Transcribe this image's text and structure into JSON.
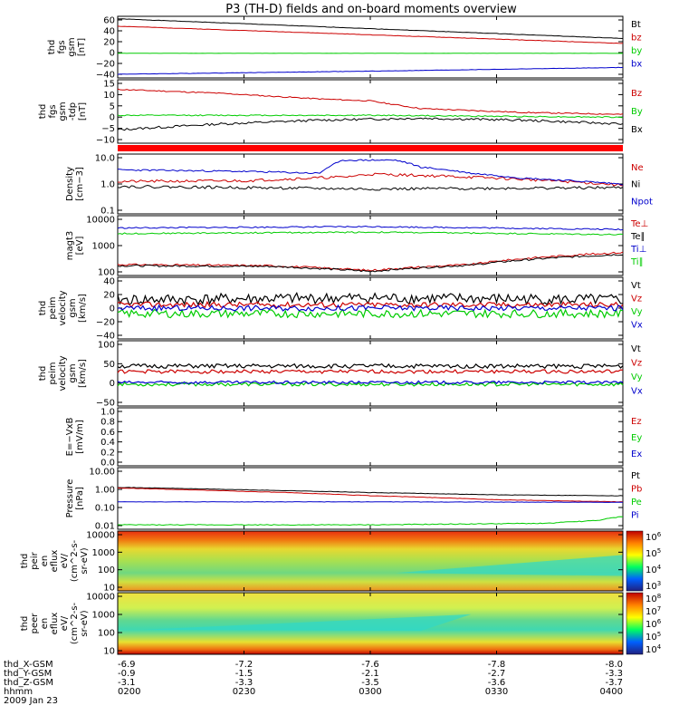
{
  "title": "P3 (TH-D) fields and on-board moments overview",
  "colors": {
    "black": "#000000",
    "red": "#cc0000",
    "green": "#00cc00",
    "blue": "#0000cc"
  },
  "chart_data": [
    {
      "type": "line",
      "ylabel": [
        "thd",
        "fgs",
        "gsm",
        "[nT]"
      ],
      "yticks": [
        "60",
        "40",
        "20",
        "0",
        "−20",
        "−40"
      ],
      "ylim": [
        -40,
        60
      ],
      "x_range": [
        "0200",
        "0400"
      ],
      "series": [
        {
          "name": "Bt",
          "color": "black",
          "x": [
            0,
            0.25,
            0.5,
            0.75,
            1
          ],
          "y": [
            56,
            48,
            40,
            32,
            24
          ],
          "noise": 0.3
        },
        {
          "name": "bz",
          "color": "red",
          "x": [
            0,
            0.25,
            0.5,
            0.75,
            1
          ],
          "y": [
            44,
            37,
            30,
            23,
            16
          ],
          "noise": 0.3
        },
        {
          "name": "by",
          "color": "green",
          "x": [
            0,
            0.5,
            1
          ],
          "y": [
            0,
            0,
            0
          ],
          "noise": 0.2
        },
        {
          "name": "bx",
          "color": "blue",
          "x": [
            0,
            0.5,
            1
          ],
          "y": [
            -34,
            -29,
            -23
          ],
          "noise": 0.3
        }
      ]
    },
    {
      "type": "line",
      "ylabel": [
        "thd",
        "fgs",
        "gsm",
        "-tdp",
        "[nT]"
      ],
      "yticks": [
        "15",
        "10",
        "5",
        "0",
        "−5",
        "−10"
      ],
      "ylim": [
        -15,
        18
      ],
      "x_range": [
        "0200",
        "0400"
      ],
      "series": [
        {
          "name": "Bz",
          "color": "red",
          "x": [
            0,
            0.2,
            0.4,
            0.5,
            0.6,
            0.8,
            1
          ],
          "y": [
            13,
            11,
            8,
            7,
            3,
            1,
            0
          ],
          "noise": 0.3
        },
        {
          "name": "By",
          "color": "green",
          "x": [
            0,
            0.5,
            1
          ],
          "y": [
            -0.5,
            -0.5,
            -1.5
          ],
          "noise": 0.3
        },
        {
          "name": "Bx",
          "color": "black",
          "x": [
            0,
            0.2,
            0.4,
            0.6,
            0.8,
            1
          ],
          "y": [
            -8,
            -5,
            -3,
            -2,
            -3,
            -5
          ],
          "noise": 0.6
        }
      ]
    },
    {
      "type": "line",
      "ylabel": [
        "Density",
        "[cm−3]"
      ],
      "yscale": "log",
      "yticks": [
        "10.0",
        "1.0",
        "0.1"
      ],
      "ylim": [
        0.1,
        15
      ],
      "x_range": [
        "0200",
        "0400"
      ],
      "series": [
        {
          "name": "Ne",
          "color": "red",
          "x": [
            0,
            0.25,
            0.45,
            0.5,
            0.6,
            0.75,
            1
          ],
          "y": [
            1.5,
            1.6,
            2.2,
            2.8,
            2.5,
            2.0,
            1.1
          ],
          "noise": 0.05
        },
        {
          "name": "Ni",
          "color": "black",
          "x": [
            0,
            0.5,
            1
          ],
          "y": [
            1.0,
            0.8,
            0.9
          ],
          "noise": 0.05
        },
        {
          "name": "Npot",
          "color": "blue",
          "x": [
            0,
            0.25,
            0.4,
            0.45,
            0.55,
            0.6,
            0.7,
            0.8,
            1
          ],
          "y": [
            4,
            3.5,
            3,
            9,
            9,
            5,
            3,
            2,
            1.2
          ],
          "noise": 0.03
        }
      ]
    },
    {
      "type": "line",
      "ylabel": [
        "magt3",
        "[eV]"
      ],
      "yscale": "log",
      "yticks": [
        "10000",
        "1000",
        "100"
      ],
      "ylim": [
        30,
        12000
      ],
      "x_range": [
        "0200",
        "0400"
      ],
      "series": [
        {
          "name": "Te⊥",
          "color": "red",
          "x": [
            0,
            0.3,
            0.5,
            0.7,
            1
          ],
          "y": [
            90,
            80,
            50,
            90,
            300
          ],
          "noise": 0.04
        },
        {
          "name": "Te∥",
          "color": "black",
          "x": [
            0,
            0.3,
            0.5,
            0.7,
            1
          ],
          "y": [
            80,
            75,
            45,
            85,
            250
          ],
          "noise": 0.04
        },
        {
          "name": "Ti⊥",
          "color": "blue",
          "x": [
            0,
            0.5,
            1
          ],
          "y": [
            3500,
            4000,
            3000
          ],
          "noise": 0.03
        },
        {
          "name": "Ti∥",
          "color": "green",
          "x": [
            0,
            0.5,
            1
          ],
          "y": [
            2000,
            2300,
            1800
          ],
          "noise": 0.03
        }
      ]
    },
    {
      "type": "line",
      "ylabel": [
        "thd",
        "peim",
        "velocity",
        "gsm",
        "[km/s]"
      ],
      "yticks": [
        "40",
        "20",
        "0",
        "−20",
        "−40"
      ],
      "ylim": [
        -45,
        45
      ],
      "x_range": [
        "0200",
        "0400"
      ],
      "series": [
        {
          "name": "Vt",
          "color": "black",
          "x": [
            0,
            0.5,
            1
          ],
          "y": [
            12,
            15,
            12
          ],
          "noise": 8
        },
        {
          "name": "Vz",
          "color": "red",
          "x": [
            0,
            0.5,
            1
          ],
          "y": [
            5,
            5,
            5
          ],
          "noise": 4
        },
        {
          "name": "Vy",
          "color": "green",
          "x": [
            0,
            0.5,
            1
          ],
          "y": [
            -8,
            -8,
            -8
          ],
          "noise": 6
        },
        {
          "name": "Vx",
          "color": "blue",
          "x": [
            0,
            0.5,
            1
          ],
          "y": [
            0,
            0,
            0
          ],
          "noise": 4
        }
      ]
    },
    {
      "type": "line",
      "ylabel": [
        "thd",
        "peim",
        "velocity",
        "gsm",
        "[km/s]"
      ],
      "yticks": [
        "100",
        "50",
        "0",
        "−50"
      ],
      "ylim": [
        -70,
        110
      ],
      "x_range": [
        "0200",
        "0400"
      ],
      "series": [
        {
          "name": "Vt",
          "color": "black",
          "x": [
            0,
            0.5,
            1
          ],
          "y": [
            40,
            40,
            40
          ],
          "noise": 6
        },
        {
          "name": "Vz",
          "color": "red",
          "x": [
            0,
            0.5,
            1
          ],
          "y": [
            25,
            25,
            25
          ],
          "noise": 5
        },
        {
          "name": "Vy",
          "color": "green",
          "x": [
            0,
            0.5,
            1
          ],
          "y": [
            -10,
            -10,
            -10
          ],
          "noise": 5
        },
        {
          "name": "Vx",
          "color": "blue",
          "x": [
            0,
            0.5,
            1
          ],
          "y": [
            -5,
            -5,
            -5
          ],
          "noise": 4
        }
      ]
    },
    {
      "type": "line",
      "ylabel": [
        "E=−VxB",
        "[mV/m]"
      ],
      "yticks": [
        "1.0",
        "0.8",
        "0.6",
        "0.4",
        "0.2",
        "0.0"
      ],
      "ylim": [
        0,
        1
      ],
      "x_range": [
        "0200",
        "0400"
      ],
      "series": [
        {
          "name": "Ez",
          "color": "red",
          "x": [],
          "y": []
        },
        {
          "name": "Ey",
          "color": "green",
          "x": [],
          "y": []
        },
        {
          "name": "Ex",
          "color": "blue",
          "x": [],
          "y": []
        }
      ]
    },
    {
      "type": "line",
      "ylabel": [
        "Pressure",
        "[nPa]"
      ],
      "yscale": "log",
      "yticks": [
        "10.00",
        "1.00",
        "0.10",
        "0.01"
      ],
      "ylim": [
        0.009,
        12
      ],
      "x_range": [
        "0200",
        "0400"
      ],
      "series": [
        {
          "name": "Pt",
          "color": "black",
          "x": [
            0,
            0.25,
            0.5,
            0.75,
            1
          ],
          "y": [
            1.2,
            0.9,
            0.65,
            0.5,
            0.45
          ],
          "noise": 0.01
        },
        {
          "name": "Pb",
          "color": "red",
          "x": [
            0,
            0.25,
            0.5,
            0.75,
            1
          ],
          "y": [
            1.1,
            0.75,
            0.45,
            0.28,
            0.22
          ],
          "noise": 0.01
        },
        {
          "name": "Pe",
          "color": "green",
          "x": [
            0,
            0.5,
            0.85,
            0.95,
            1
          ],
          "y": [
            0.015,
            0.015,
            0.018,
            0.025,
            0.04
          ],
          "noise": 0.02
        },
        {
          "name": "Pi",
          "color": "blue",
          "x": [
            0,
            0.5,
            1
          ],
          "y": [
            0.22,
            0.22,
            0.21
          ],
          "noise": 0.01
        }
      ]
    },
    {
      "type": "heatmap",
      "ylabel": [
        "thd",
        "peir",
        "en",
        "eflux",
        "eV/",
        "(cm^2-s-",
        "sr-eV)"
      ],
      "yticks": [
        "10000",
        "1000",
        "100",
        "10"
      ],
      "colorbar_ticks": [
        "10^6",
        "10^5",
        "10^4",
        "10^3"
      ],
      "x_range": [
        "0200",
        "0400"
      ]
    },
    {
      "type": "heatmap",
      "ylabel": [
        "thd",
        "peer",
        "en",
        "eflux",
        "eV/",
        "(cm^2-s-",
        "sr-eV)"
      ],
      "yticks": [
        "10000",
        "1000",
        "100",
        "10"
      ],
      "colorbar_ticks": [
        "10^8",
        "10^7",
        "10^6",
        "10^5",
        "10^4"
      ],
      "x_range": [
        "0200",
        "0400"
      ]
    }
  ],
  "footer": {
    "rows": [
      {
        "label": "thd_X-GSM",
        "values": [
          "-6.9",
          "-7.2",
          "-7.6",
          "-7.8",
          "-8.0"
        ]
      },
      {
        "label": "thd_Y-GSM",
        "values": [
          "-0.9",
          "-1.5",
          "-2.1",
          "-2.7",
          "-3.3"
        ]
      },
      {
        "label": "thd_Z-GSM",
        "values": [
          "-3.1",
          "-3.3",
          "-3.5",
          "-3.6",
          "-3.7"
        ]
      },
      {
        "label": "hhmm",
        "values": [
          "0200",
          "0230",
          "0300",
          "0330",
          "0400"
        ]
      }
    ],
    "date": "2009 Jan 23"
  }
}
